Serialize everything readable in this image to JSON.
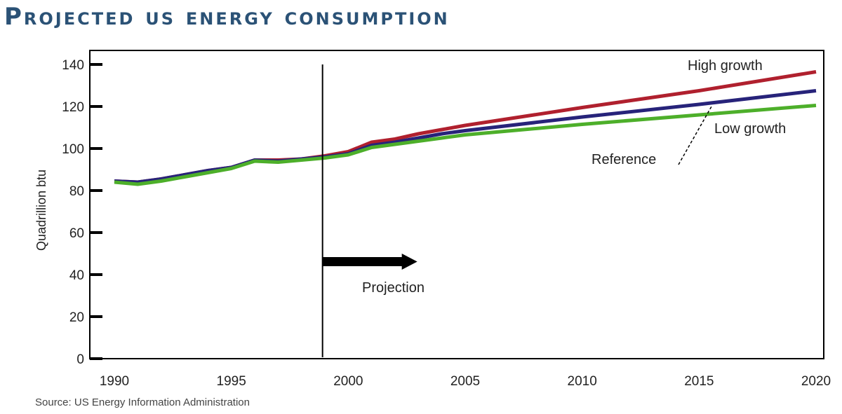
{
  "chart_data": {
    "type": "line",
    "title": "Projected US energy consumption",
    "ylabel": "Quadrillion btu",
    "xlabel": "",
    "xlim": [
      1990,
      2020
    ],
    "ylim": [
      0,
      140
    ],
    "xticks": [
      1990,
      1995,
      2000,
      2005,
      2010,
      2015,
      2020
    ],
    "yticks": [
      0,
      20,
      40,
      60,
      80,
      100,
      120,
      140
    ],
    "grid": false,
    "series": [
      {
        "name": "High growth",
        "color": "#b0202e",
        "points": [
          [
            1990,
            84.5
          ],
          [
            1991,
            84
          ],
          [
            1992,
            85.5
          ],
          [
            1993,
            87.5
          ],
          [
            1994,
            89.5
          ],
          [
            1995,
            91
          ],
          [
            1996,
            94.5
          ],
          [
            1997,
            94.5
          ],
          [
            1998,
            95
          ],
          [
            1999,
            96.5
          ],
          [
            2000,
            98.5
          ],
          [
            2001,
            103
          ],
          [
            2002,
            104.5
          ],
          [
            2003,
            107
          ],
          [
            2004,
            109
          ],
          [
            2005,
            111
          ],
          [
            2010,
            119.5
          ],
          [
            2015,
            127.5
          ],
          [
            2020,
            136.5
          ]
        ]
      },
      {
        "name": "Reference",
        "color": "#27237a",
        "points": [
          [
            1990,
            84.5
          ],
          [
            1991,
            84
          ],
          [
            1992,
            85.5
          ],
          [
            1993,
            87.5
          ],
          [
            1994,
            89.5
          ],
          [
            1995,
            91
          ],
          [
            1996,
            94.5
          ],
          [
            1997,
            94
          ],
          [
            1998,
            95
          ],
          [
            1999,
            96
          ],
          [
            2000,
            97.5
          ],
          [
            2001,
            101.5
          ],
          [
            2002,
            103
          ],
          [
            2003,
            105
          ],
          [
            2004,
            107
          ],
          [
            2005,
            108.5
          ],
          [
            2010,
            115
          ],
          [
            2015,
            121
          ],
          [
            2020,
            127.5
          ]
        ]
      },
      {
        "name": "Low growth",
        "color": "#4daf2a",
        "points": [
          [
            1990,
            84
          ],
          [
            1991,
            83
          ],
          [
            1992,
            84.5
          ],
          [
            1993,
            86.5
          ],
          [
            1994,
            88.5
          ],
          [
            1995,
            90.5
          ],
          [
            1996,
            94
          ],
          [
            1997,
            93.5
          ],
          [
            1998,
            94.5
          ],
          [
            1999,
            95.5
          ],
          [
            2000,
            97
          ],
          [
            2001,
            100.5
          ],
          [
            2002,
            102
          ],
          [
            2003,
            103.5
          ],
          [
            2004,
            105
          ],
          [
            2005,
            106.5
          ],
          [
            2010,
            111.5
          ],
          [
            2015,
            116
          ],
          [
            2020,
            120.5
          ]
        ]
      }
    ],
    "divider_x": 1998.9,
    "annotations": {
      "projection": "Projection",
      "high_growth": "High growth",
      "low_growth": "Low growth",
      "reference": "Reference"
    },
    "axis_color": "#000000"
  },
  "source": "Source: US Energy Information Administration"
}
